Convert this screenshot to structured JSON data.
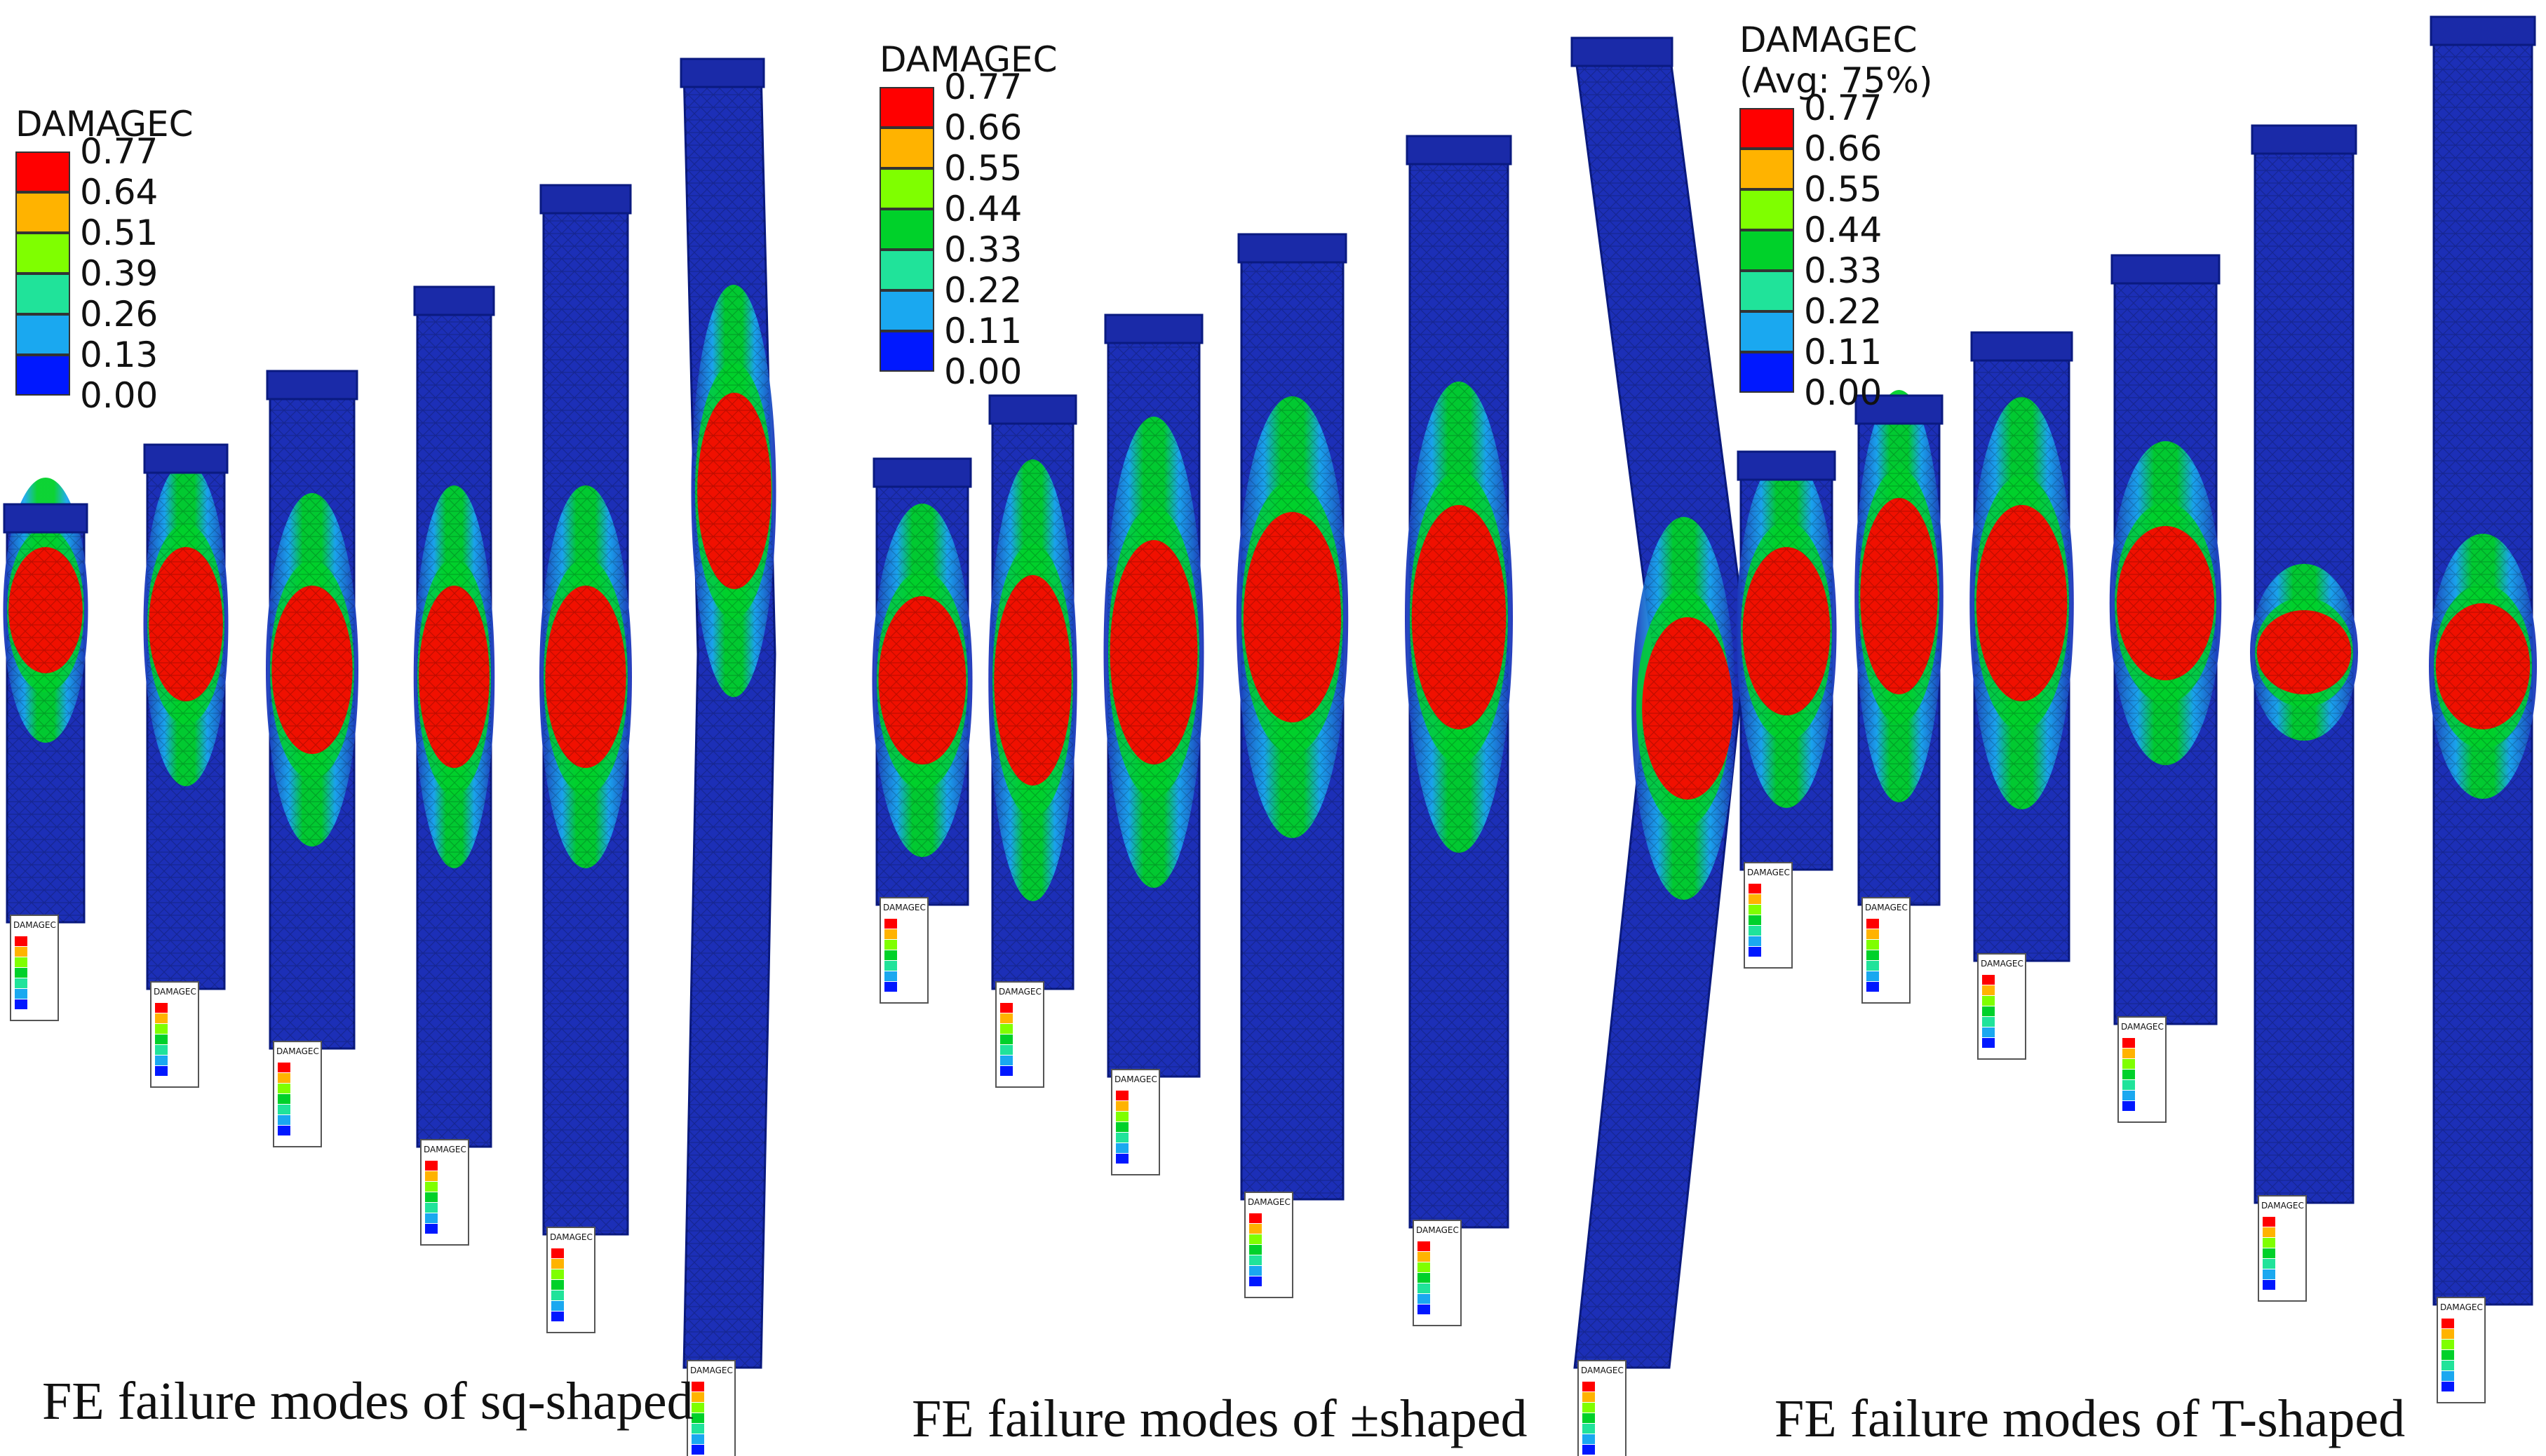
{
  "colorbar_palette": [
    "#ff0000",
    "#ffb300",
    "#7fff00",
    "#00d12a",
    "#20e39a",
    "#1aa8f0",
    "#0018ff"
  ],
  "mesh_background": "#1c2fb7",
  "damage_red": "#f01000",
  "panels": [
    {
      "id": "sq",
      "caption": "FE failure modes of sq-shaped",
      "legend": {
        "title": "DAMAGEC",
        "subtitle": "",
        "values": [
          "0.77",
          "0.64",
          "0.51",
          "0.39",
          "0.26",
          "0.13",
          "0.00"
        ]
      },
      "mini_legend_title": "DAMAGEC",
      "specimen_count": 6
    },
    {
      "id": "pm",
      "caption": "FE failure modes of ±shaped",
      "legend": {
        "title": "DAMAGEC",
        "subtitle": "",
        "values": [
          "0.77",
          "0.66",
          "0.55",
          "0.44",
          "0.33",
          "0.22",
          "0.11",
          "0.00"
        ]
      },
      "mini_legend_title": "DAMAGEC",
      "specimen_count": 6
    },
    {
      "id": "t",
      "caption": "FE failure modes of T-shaped",
      "legend": {
        "title": "DAMAGEC",
        "subtitle": "(Avg: 75%)",
        "values": [
          "0.77",
          "0.66",
          "0.55",
          "0.44",
          "0.33",
          "0.22",
          "0.11",
          "0.00"
        ]
      },
      "mini_legend_title": "DAMAGEC",
      "mini_legend_subtitle": "(Avg: 75%)",
      "specimen_count": 6
    }
  ]
}
